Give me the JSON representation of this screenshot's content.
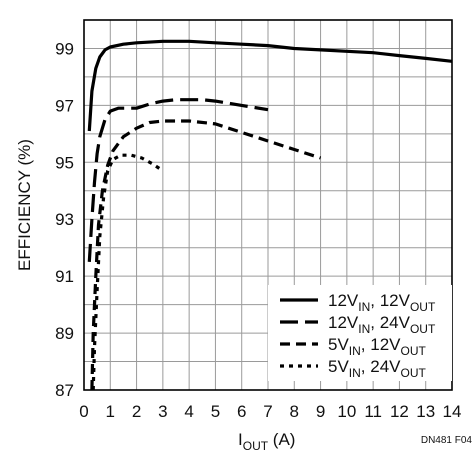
{
  "chart_data": {
    "type": "line",
    "xlabel": "I",
    "xlabel_sub": "OUT",
    "xlabel_unit": " (A)",
    "ylabel": "EFFICIENCY (%)",
    "xlim": [
      0,
      14
    ],
    "ylim": [
      87,
      100
    ],
    "x_ticks": [
      0,
      1,
      2,
      3,
      4,
      5,
      6,
      7,
      8,
      9,
      10,
      11,
      12,
      13,
      14
    ],
    "y_ticks": [
      87,
      89,
      91,
      93,
      95,
      97,
      99
    ],
    "grid": true,
    "legend_placement": "bottom-right",
    "figure_note": "DN481 F04",
    "series": [
      {
        "name": "12VIN, 12VOUT",
        "label_parts": [
          "12V",
          "IN",
          ", 12V",
          "OUT"
        ],
        "style": "solid",
        "color": "#000000",
        "points": [
          [
            0.2,
            96.1
          ],
          [
            0.3,
            97.5
          ],
          [
            0.45,
            98.3
          ],
          [
            0.6,
            98.7
          ],
          [
            0.8,
            98.95
          ],
          [
            1.0,
            99.05
          ],
          [
            1.5,
            99.15
          ],
          [
            2,
            99.2
          ],
          [
            3,
            99.25
          ],
          [
            4,
            99.25
          ],
          [
            5,
            99.2
          ],
          [
            6,
            99.15
          ],
          [
            7,
            99.1
          ],
          [
            8,
            99.0
          ],
          [
            9,
            98.95
          ],
          [
            10,
            98.9
          ],
          [
            11,
            98.85
          ],
          [
            12,
            98.75
          ],
          [
            13,
            98.65
          ],
          [
            14,
            98.55
          ]
        ]
      },
      {
        "name": "12VIN, 24VOUT",
        "label_parts": [
          "12V",
          "IN",
          ", 24V",
          "OUT"
        ],
        "style": "long-dash",
        "color": "#000000",
        "points": [
          [
            0.2,
            91.5
          ],
          [
            0.3,
            93.0
          ],
          [
            0.4,
            94.3
          ],
          [
            0.5,
            95.3
          ],
          [
            0.6,
            95.9
          ],
          [
            0.8,
            96.5
          ],
          [
            1.0,
            96.8
          ],
          [
            1.3,
            96.9
          ],
          [
            2,
            96.9
          ],
          [
            2.5,
            97.05
          ],
          [
            3,
            97.15
          ],
          [
            3.5,
            97.2
          ],
          [
            4,
            97.2
          ],
          [
            4.5,
            97.2
          ],
          [
            5,
            97.15
          ],
          [
            6,
            97.0
          ],
          [
            7,
            96.85
          ]
        ]
      },
      {
        "name": "5VIN, 12VOUT",
        "label_parts": [
          "5V",
          "IN",
          ", 12V",
          "OUT"
        ],
        "style": "dash",
        "color": "#000000",
        "points": [
          [
            0.3,
            87.0
          ],
          [
            0.35,
            89.0
          ],
          [
            0.45,
            91.0
          ],
          [
            0.55,
            92.8
          ],
          [
            0.7,
            94.0
          ],
          [
            0.9,
            94.9
          ],
          [
            1.1,
            95.4
          ],
          [
            1.5,
            95.9
          ],
          [
            2,
            96.2
          ],
          [
            2.5,
            96.4
          ],
          [
            3,
            96.45
          ],
          [
            4,
            96.45
          ],
          [
            5,
            96.35
          ],
          [
            6,
            96.05
          ],
          [
            7,
            95.75
          ],
          [
            8,
            95.45
          ],
          [
            9,
            95.15
          ]
        ]
      },
      {
        "name": "5VIN, 24VOUT",
        "label_parts": [
          "5V",
          "IN",
          ", 24V",
          "OUT"
        ],
        "style": "dot",
        "color": "#000000",
        "points": [
          [
            0.35,
            87.0
          ],
          [
            0.4,
            88.5
          ],
          [
            0.5,
            90.5
          ],
          [
            0.6,
            92.4
          ],
          [
            0.75,
            93.8
          ],
          [
            0.9,
            94.7
          ],
          [
            1.1,
            95.1
          ],
          [
            1.4,
            95.25
          ],
          [
            1.8,
            95.25
          ],
          [
            2.2,
            95.15
          ],
          [
            2.6,
            94.95
          ],
          [
            3.0,
            94.7
          ]
        ]
      }
    ]
  }
}
